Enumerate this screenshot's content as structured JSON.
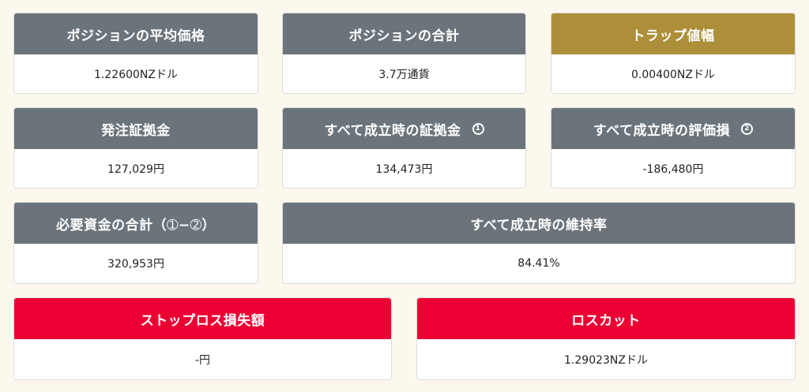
{
  "colors": {
    "background": "#fdf8ee",
    "header_gray": "#6b747b",
    "header_gold": "#ad8f3a",
    "header_red": "#ec0033"
  },
  "cards": {
    "avg_price": {
      "title": "ポジションの平均価格",
      "value": "1.22600NZドル"
    },
    "position_total": {
      "title": "ポジションの合計",
      "value": "3.7万通貨"
    },
    "trap_width": {
      "title": "トラップ値幅",
      "value": "0.00400NZドル"
    },
    "order_margin": {
      "title": "発注証拠金",
      "value": "127,029円"
    },
    "all_filled_margin": {
      "title": "すべて成立時の証拠金",
      "marker": "1",
      "value": "134,473円"
    },
    "all_filled_valuation_loss": {
      "title": "すべて成立時の評価損",
      "marker": "2",
      "value": "-186,480円"
    },
    "required_funds_total": {
      "title": "必要資金の合計（➀−➁）",
      "value": "320,953円"
    },
    "all_filled_maintenance_rate": {
      "title": "すべて成立時の維持率",
      "value": "84.41%"
    },
    "stop_loss_amount": {
      "title": "ストップロス損失額",
      "value": "-円"
    },
    "loss_cut": {
      "title": "ロスカット",
      "value": "1.29023NZドル"
    }
  }
}
